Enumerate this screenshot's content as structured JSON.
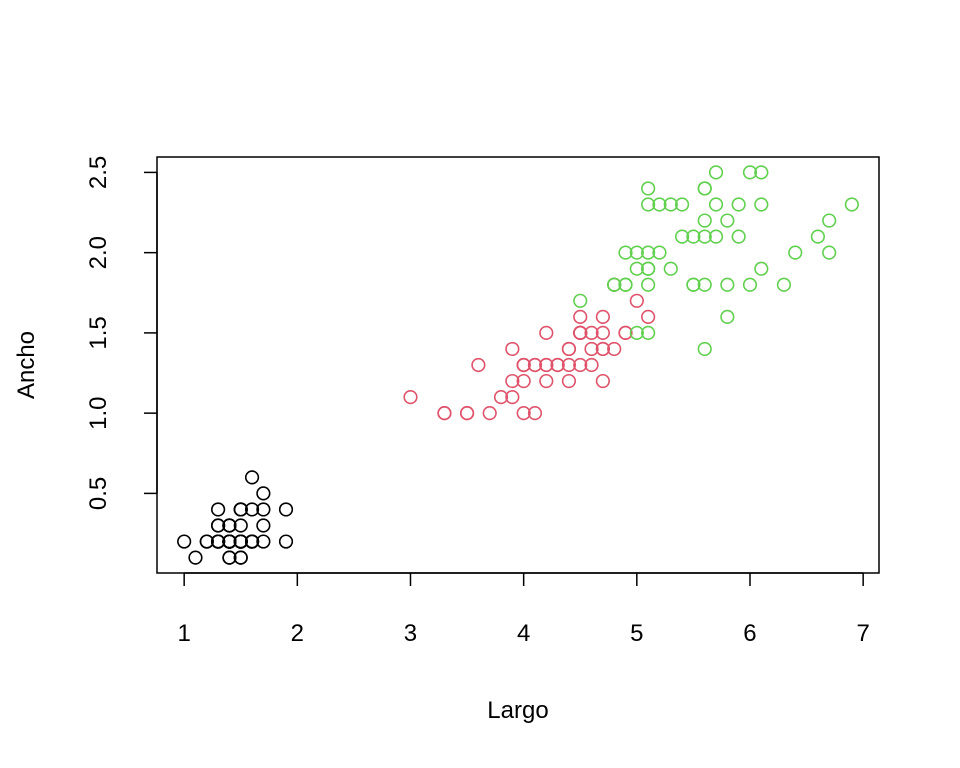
{
  "chart_data": {
    "type": "scatter",
    "title": "",
    "xlabel": "Largo",
    "ylabel": "Ancho",
    "xlim": [
      0.76,
      7.14
    ],
    "ylim": [
      0.004,
      2.596
    ],
    "x_ticks": [
      "1",
      "2",
      "3",
      "4",
      "5",
      "6",
      "7"
    ],
    "y_ticks": [
      "0.5",
      "1.0",
      "1.5",
      "2.0",
      "2.5"
    ],
    "grid": false,
    "legend": "none",
    "series": [
      {
        "color": "#000000",
        "points": [
          [
            1.4,
            0.2
          ],
          [
            1.4,
            0.2
          ],
          [
            1.3,
            0.2
          ],
          [
            1.5,
            0.2
          ],
          [
            1.4,
            0.2
          ],
          [
            1.7,
            0.4
          ],
          [
            1.4,
            0.3
          ],
          [
            1.5,
            0.2
          ],
          [
            1.4,
            0.2
          ],
          [
            1.5,
            0.1
          ],
          [
            1.5,
            0.2
          ],
          [
            1.6,
            0.2
          ],
          [
            1.4,
            0.1
          ],
          [
            1.1,
            0.1
          ],
          [
            1.2,
            0.2
          ],
          [
            1.5,
            0.4
          ],
          [
            1.3,
            0.4
          ],
          [
            1.4,
            0.3
          ],
          [
            1.7,
            0.3
          ],
          [
            1.5,
            0.3
          ],
          [
            1.7,
            0.2
          ],
          [
            1.5,
            0.4
          ],
          [
            1.0,
            0.2
          ],
          [
            1.7,
            0.5
          ],
          [
            1.9,
            0.2
          ],
          [
            1.6,
            0.2
          ],
          [
            1.6,
            0.4
          ],
          [
            1.5,
            0.2
          ],
          [
            1.4,
            0.2
          ],
          [
            1.6,
            0.2
          ],
          [
            1.6,
            0.2
          ],
          [
            1.5,
            0.4
          ],
          [
            1.5,
            0.1
          ],
          [
            1.4,
            0.2
          ],
          [
            1.5,
            0.2
          ],
          [
            1.2,
            0.2
          ],
          [
            1.3,
            0.2
          ],
          [
            1.4,
            0.1
          ],
          [
            1.3,
            0.2
          ],
          [
            1.5,
            0.2
          ],
          [
            1.3,
            0.3
          ],
          [
            1.3,
            0.3
          ],
          [
            1.3,
            0.2
          ],
          [
            1.6,
            0.6
          ],
          [
            1.9,
            0.4
          ],
          [
            1.4,
            0.3
          ],
          [
            1.6,
            0.2
          ],
          [
            1.4,
            0.2
          ],
          [
            1.5,
            0.2
          ],
          [
            1.4,
            0.2
          ]
        ]
      },
      {
        "color": "#DF536B",
        "points": [
          [
            4.7,
            1.4
          ],
          [
            4.5,
            1.5
          ],
          [
            4.9,
            1.5
          ],
          [
            4.0,
            1.3
          ],
          [
            4.6,
            1.5
          ],
          [
            4.5,
            1.3
          ],
          [
            4.7,
            1.6
          ],
          [
            3.3,
            1.0
          ],
          [
            4.6,
            1.3
          ],
          [
            3.9,
            1.4
          ],
          [
            3.5,
            1.0
          ],
          [
            4.2,
            1.5
          ],
          [
            4.0,
            1.0
          ],
          [
            4.7,
            1.4
          ],
          [
            3.6,
            1.3
          ],
          [
            4.4,
            1.4
          ],
          [
            4.5,
            1.5
          ],
          [
            4.1,
            1.0
          ],
          [
            4.5,
            1.5
          ],
          [
            3.9,
            1.1
          ],
          [
            4.8,
            1.8
          ],
          [
            4.0,
            1.3
          ],
          [
            4.9,
            1.5
          ],
          [
            4.7,
            1.2
          ],
          [
            4.3,
            1.3
          ],
          [
            4.4,
            1.4
          ],
          [
            4.8,
            1.4
          ],
          [
            5.0,
            1.7
          ],
          [
            4.5,
            1.5
          ],
          [
            3.5,
            1.0
          ],
          [
            3.8,
            1.1
          ],
          [
            3.7,
            1.0
          ],
          [
            3.9,
            1.2
          ],
          [
            5.1,
            1.6
          ],
          [
            4.5,
            1.5
          ],
          [
            4.5,
            1.6
          ],
          [
            4.7,
            1.5
          ],
          [
            4.4,
            1.3
          ],
          [
            4.1,
            1.3
          ],
          [
            4.0,
            1.3
          ],
          [
            4.4,
            1.2
          ],
          [
            4.6,
            1.4
          ],
          [
            4.0,
            1.2
          ],
          [
            3.3,
            1.0
          ],
          [
            4.2,
            1.3
          ],
          [
            4.2,
            1.2
          ],
          [
            4.2,
            1.3
          ],
          [
            4.3,
            1.3
          ],
          [
            3.0,
            1.1
          ],
          [
            4.1,
            1.3
          ]
        ]
      },
      {
        "color": "#61D04F",
        "points": [
          [
            6.0,
            2.5
          ],
          [
            5.1,
            1.9
          ],
          [
            5.9,
            2.1
          ],
          [
            5.6,
            1.8
          ],
          [
            5.8,
            2.2
          ],
          [
            6.6,
            2.1
          ],
          [
            4.5,
            1.7
          ],
          [
            6.3,
            1.8
          ],
          [
            5.8,
            1.8
          ],
          [
            6.1,
            2.5
          ],
          [
            5.1,
            2.0
          ],
          [
            5.3,
            1.9
          ],
          [
            5.5,
            2.1
          ],
          [
            5.0,
            2.0
          ],
          [
            5.1,
            2.4
          ],
          [
            5.3,
            2.3
          ],
          [
            5.5,
            1.8
          ],
          [
            6.7,
            2.2
          ],
          [
            6.9,
            2.3
          ],
          [
            5.0,
            1.5
          ],
          [
            5.7,
            2.3
          ],
          [
            4.9,
            2.0
          ],
          [
            6.7,
            2.0
          ],
          [
            4.9,
            1.8
          ],
          [
            5.7,
            2.1
          ],
          [
            6.0,
            1.8
          ],
          [
            4.8,
            1.8
          ],
          [
            4.9,
            1.8
          ],
          [
            5.6,
            2.1
          ],
          [
            5.8,
            1.6
          ],
          [
            6.1,
            1.9
          ],
          [
            6.4,
            2.0
          ],
          [
            5.6,
            2.2
          ],
          [
            5.1,
            1.5
          ],
          [
            5.6,
            1.4
          ],
          [
            6.1,
            2.3
          ],
          [
            5.6,
            2.4
          ],
          [
            5.5,
            1.8
          ],
          [
            4.8,
            1.8
          ],
          [
            5.4,
            2.1
          ],
          [
            5.6,
            2.4
          ],
          [
            5.1,
            2.3
          ],
          [
            5.1,
            1.9
          ],
          [
            5.9,
            2.3
          ],
          [
            5.7,
            2.5
          ],
          [
            5.2,
            2.3
          ],
          [
            5.0,
            1.9
          ],
          [
            5.2,
            2.0
          ],
          [
            5.4,
            2.3
          ],
          [
            5.1,
            1.8
          ]
        ]
      }
    ]
  }
}
